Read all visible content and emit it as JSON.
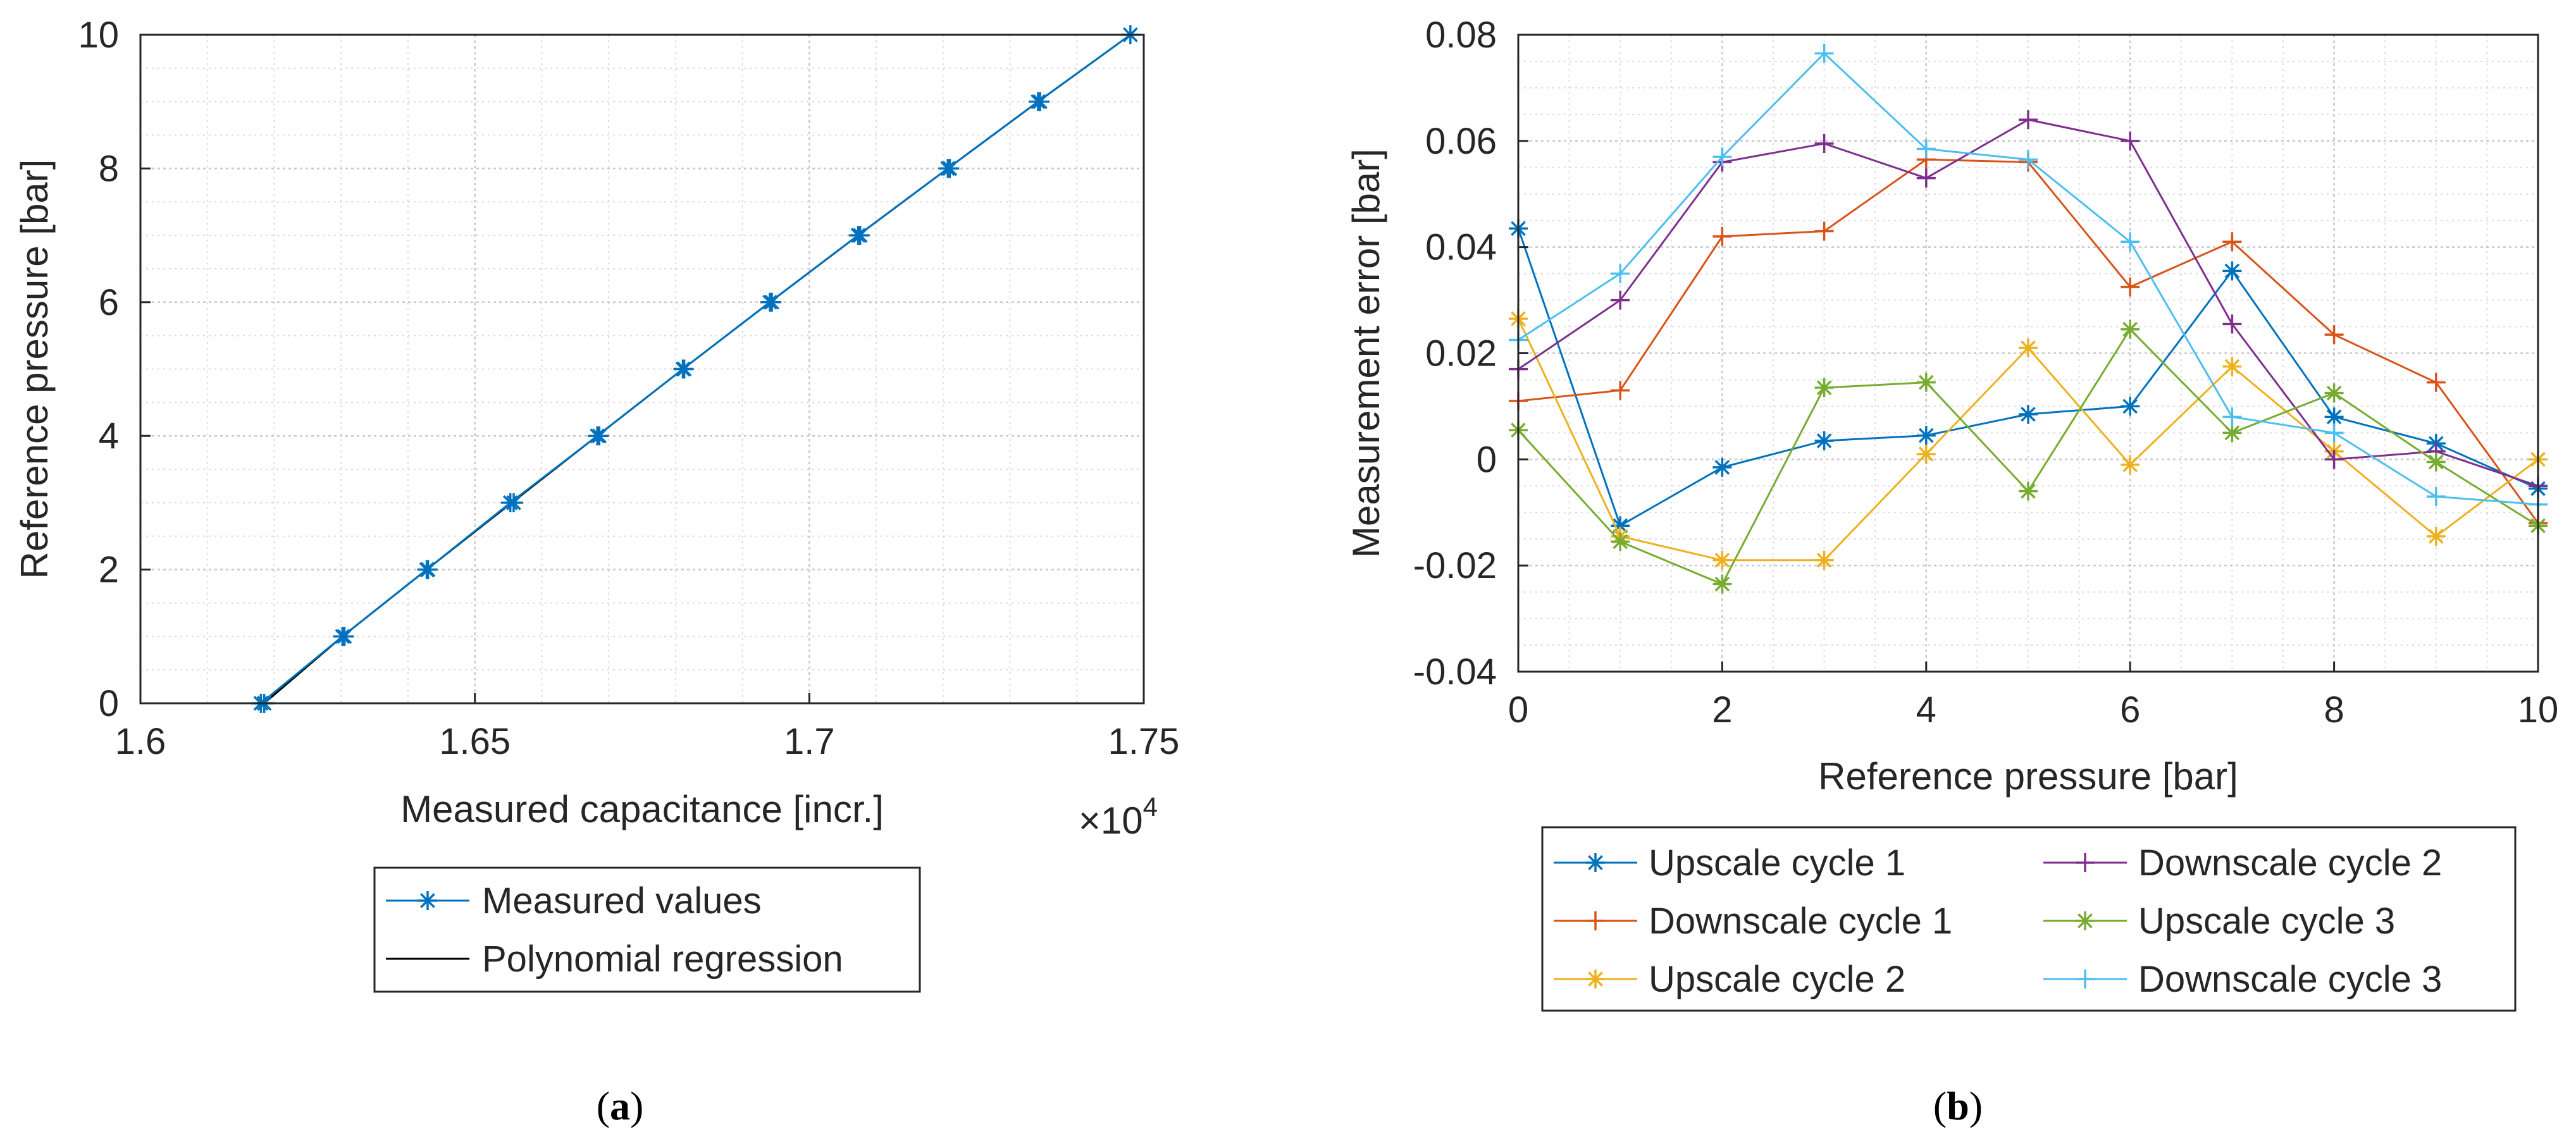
{
  "panels": {
    "a": {
      "label": "a"
    },
    "b": {
      "label": "b"
    }
  },
  "colors": {
    "axis": "#262626",
    "grid": "#dcdcdc",
    "blue": "#0072BD",
    "orange": "#D95319",
    "yellow": "#EDB120",
    "purple": "#7E2F8E",
    "green": "#77AC30",
    "cyan": "#4DBEEE",
    "black": "#000000"
  },
  "chart_data": [
    {
      "type": "line",
      "panel": "a",
      "xlabel": "Measured capacitance [incr.]",
      "ylabel": "Reference pressure [bar]",
      "xlim": [
        1.6,
        1.75
      ],
      "ylim": [
        0,
        10
      ],
      "xticks": [
        "1.6",
        "1.65",
        "1.7",
        "1.75"
      ],
      "yticks": [
        "0",
        "2",
        "4",
        "6",
        "8",
        "10"
      ],
      "x_exponent_base": "×10",
      "x_exponent_power": "4",
      "grid": true,
      "minor_grid": true,
      "legend_position": "bottom-center",
      "series": [
        {
          "name": "Measured values",
          "marker": "star",
          "color": "#0072BD",
          "points": [
            [
              1.618,
              0
            ],
            [
              1.6302,
              1
            ],
            [
              1.6428,
              2
            ],
            [
              1.6553,
              3
            ],
            [
              1.6683,
              4
            ],
            [
              1.6811,
              5
            ],
            [
              1.6941,
              6
            ],
            [
              1.7073,
              7
            ],
            [
              1.7207,
              8
            ],
            [
              1.7342,
              9
            ],
            [
              1.748,
              10
            ],
            [
              1.6185,
              0
            ],
            [
              1.6305,
              1
            ],
            [
              1.643,
              2
            ],
            [
              1.6558,
              3
            ],
            [
              1.6686,
              4
            ],
            [
              1.6813,
              5
            ],
            [
              1.6944,
              6
            ],
            [
              1.7076,
              7
            ],
            [
              1.721,
              8
            ],
            [
              1.7345,
              9
            ]
          ]
        },
        {
          "name": "Polynomial regression",
          "marker": "none",
          "color": "#000000",
          "points": [
            [
              1.6185,
              0
            ],
            [
              1.6302,
              1
            ],
            [
              1.6428,
              2
            ],
            [
              1.6555,
              3
            ],
            [
              1.6683,
              4
            ],
            [
              1.6811,
              5
            ],
            [
              1.6941,
              6
            ],
            [
              1.7073,
              7
            ],
            [
              1.7207,
              8
            ],
            [
              1.7342,
              9
            ],
            [
              1.748,
              10
            ]
          ]
        }
      ]
    },
    {
      "type": "line",
      "panel": "b",
      "xlabel": "Reference pressure [bar]",
      "ylabel": "Measurement error [bar]",
      "xlim": [
        0,
        10
      ],
      "ylim": [
        -0.04,
        0.08
      ],
      "xticks": [
        "0",
        "2",
        "4",
        "6",
        "8",
        "10"
      ],
      "yticks": [
        "-0.04",
        "-0.02",
        "0",
        "0.02",
        "0.04",
        "0.06",
        "0.08"
      ],
      "grid": true,
      "minor_grid": true,
      "legend_position": "bottom-center",
      "x": [
        0,
        1,
        2,
        3,
        4,
        5,
        6,
        7,
        8,
        9,
        10
      ],
      "series": [
        {
          "name": "Upscale cycle 1",
          "marker": "star",
          "color": "#0072BD",
          "values": [
            0.0435,
            -0.0125,
            -0.0015,
            0.0035,
            0.0045,
            0.0085,
            0.01,
            0.0355,
            0.008,
            0.003,
            -0.0055
          ]
        },
        {
          "name": "Downscale cycle 1",
          "marker": "plus",
          "color": "#D95319",
          "values": [
            0.011,
            0.013,
            0.042,
            0.043,
            0.0565,
            0.056,
            0.0325,
            0.041,
            0.0235,
            0.0145,
            -0.012
          ]
        },
        {
          "name": "Upscale cycle 2",
          "marker": "star",
          "color": "#EDB120",
          "values": [
            0.0265,
            -0.0145,
            -0.019,
            -0.019,
            0.001,
            0.021,
            -0.001,
            0.0175,
            0.0015,
            -0.0145,
            0.0
          ]
        },
        {
          "name": "Downscale cycle 2",
          "marker": "plus",
          "color": "#7E2F8E",
          "values": [
            0.017,
            0.03,
            0.056,
            0.0595,
            0.053,
            0.064,
            0.06,
            0.0255,
            0.0,
            0.0015,
            -0.005
          ]
        },
        {
          "name": "Upscale cycle 3",
          "marker": "star",
          "color": "#77AC30",
          "values": [
            0.0055,
            -0.0155,
            -0.0235,
            0.0135,
            0.0145,
            -0.006,
            0.0245,
            0.005,
            0.0125,
            -0.0005,
            -0.0125
          ]
        },
        {
          "name": "Downscale cycle 3",
          "marker": "plus",
          "color": "#4DBEEE",
          "values": [
            0.0225,
            0.035,
            0.057,
            0.0765,
            0.0585,
            0.0565,
            0.041,
            0.008,
            0.005,
            -0.007,
            -0.0085
          ]
        }
      ]
    }
  ]
}
